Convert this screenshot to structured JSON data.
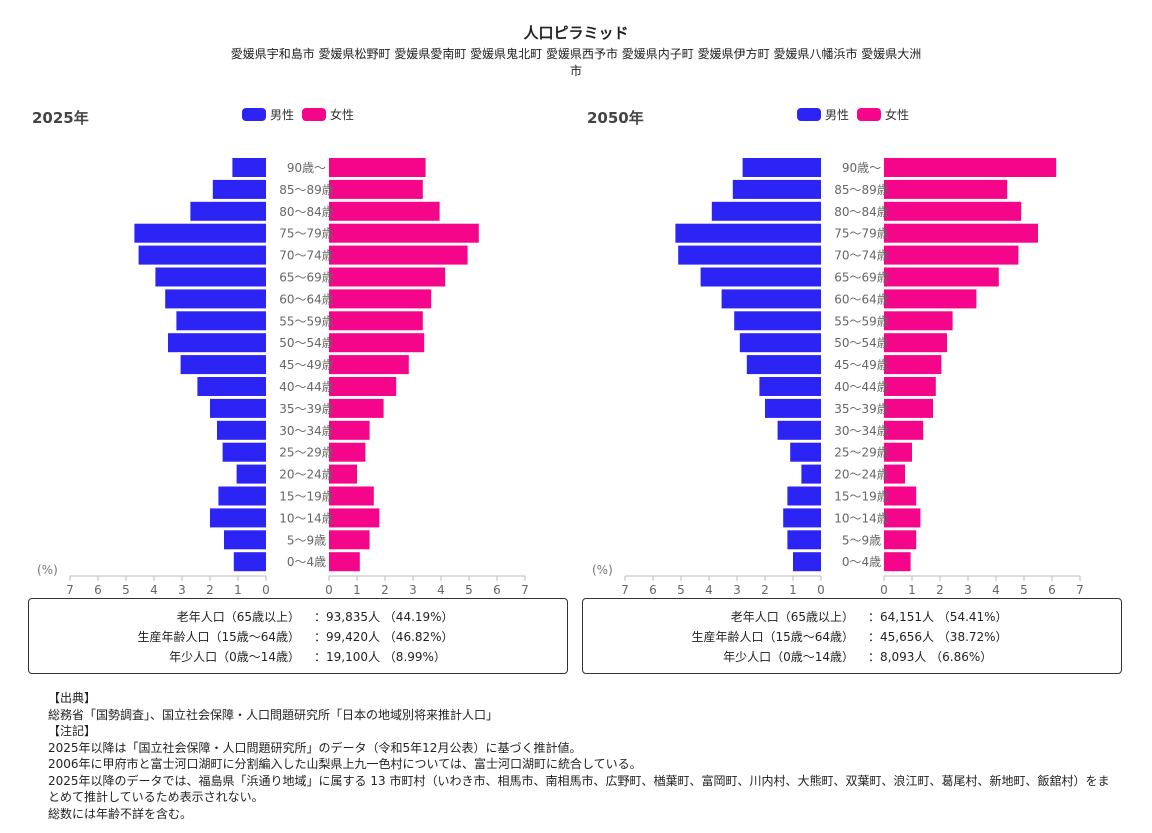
{
  "title": "人口ピラミッド",
  "subtitle": "愛媛県宇和島市 愛媛県松野町 愛媛県愛南町 愛媛県鬼北町 愛媛県西予市 愛媛県内子町 愛媛県伊方町 愛媛県八幡浜市 愛媛県大洲市",
  "legend": {
    "male": "男性",
    "female": "女性"
  },
  "colors": {
    "male": "#2b24f5",
    "female": "#f5058a"
  },
  "axis_unit": "(%)",
  "chart_data": [
    {
      "type": "bar",
      "title": "2025年",
      "categories": [
        "90歳〜",
        "85〜89歳",
        "80〜84歳",
        "75〜79歳",
        "70〜74歳",
        "65〜69歳",
        "60〜64歳",
        "55〜59歳",
        "50〜54歳",
        "45〜49歳",
        "40〜44歳",
        "35〜39歳",
        "30〜34歳",
        "25〜29歳",
        "20〜24歳",
        "15〜19歳",
        "10〜14歳",
        "5〜9歳",
        "0〜4歳"
      ],
      "series": [
        {
          "name": "男性",
          "values": [
            1.2,
            1.9,
            2.7,
            4.7,
            4.55,
            3.95,
            3.6,
            3.2,
            3.5,
            3.05,
            2.45,
            2.0,
            1.75,
            1.55,
            1.05,
            1.7,
            2.0,
            1.5,
            1.15
          ]
        },
        {
          "name": "女性",
          "values": [
            3.45,
            3.35,
            3.95,
            5.35,
            4.95,
            4.15,
            3.65,
            3.35,
            3.4,
            2.85,
            2.4,
            1.95,
            1.45,
            1.3,
            1.0,
            1.6,
            1.8,
            1.45,
            1.1
          ]
        }
      ],
      "xlim": [
        0,
        7
      ],
      "ticks": [
        "7",
        "6",
        "5",
        "4",
        "3",
        "2",
        "1",
        "0"
      ],
      "ticks_right": [
        "0",
        "1",
        "2",
        "3",
        "4",
        "5",
        "6",
        "7"
      ]
    },
    {
      "type": "bar",
      "title": "2050年",
      "categories": [
        "90歳〜",
        "85〜89歳",
        "80〜84歳",
        "75〜79歳",
        "70〜74歳",
        "65〜69歳",
        "60〜64歳",
        "55〜59歳",
        "50〜54歳",
        "45〜49歳",
        "40〜44歳",
        "35〜39歳",
        "30〜34歳",
        "25〜29歳",
        "20〜24歳",
        "15〜19歳",
        "10〜14歳",
        "5〜9歳",
        "0〜4歳"
      ],
      "series": [
        {
          "name": "男性",
          "values": [
            2.8,
            3.15,
            3.9,
            5.2,
            5.1,
            4.3,
            3.55,
            3.1,
            2.9,
            2.65,
            2.2,
            2.0,
            1.55,
            1.1,
            0.7,
            1.2,
            1.35,
            1.2,
            1.0
          ]
        },
        {
          "name": "女性",
          "values": [
            6.15,
            4.4,
            4.9,
            5.5,
            4.8,
            4.1,
            3.3,
            2.45,
            2.25,
            2.05,
            1.85,
            1.75,
            1.4,
            1.0,
            0.75,
            1.15,
            1.3,
            1.15,
            0.95
          ]
        }
      ],
      "xlim": [
        0,
        7
      ],
      "ticks": [
        "7",
        "6",
        "5",
        "4",
        "3",
        "2",
        "1",
        "0"
      ],
      "ticks_right": [
        "0",
        "1",
        "2",
        "3",
        "4",
        "5",
        "6",
        "7"
      ]
    }
  ],
  "summary_2025": [
    {
      "label": "老年人口（65歳以上）",
      "value": "：93,835人 （44.19%）"
    },
    {
      "label": "生産年齢人口（15歳〜64歳）",
      "value": "：99,420人 （46.82%）"
    },
    {
      "label": "年少人口（0歳〜14歳）",
      "value": "：19,100人 （8.99%）"
    }
  ],
  "summary_2050": [
    {
      "label": "老年人口（65歳以上）",
      "value": "：64,151人 （54.41%）"
    },
    {
      "label": "生産年齢人口（15歳〜64歳）",
      "value": "：45,656人 （38.72%）"
    },
    {
      "label": "年少人口（0歳〜14歳）",
      "value": "：8,093人 （6.86%）"
    }
  ],
  "notes": [
    "【出典】",
    "総務省「国勢調査」、国立社会保障・人口問題研究所「日本の地域別将来推計人口」",
    "【注記】",
    "2025年以降は「国立社会保障・人口問題研究所」のデータ（令和5年12月公表）に基づく推計値。",
    "2006年に甲府市と富士河口湖町に分割編入した山梨県上九一色村については、富士河口湖町に統合している。",
    "2025年以降のデータでは、福島県「浜通り地域」に属する 13 市町村（いわき市、相馬市、南相馬市、広野町、楢葉町、富岡町、川内村、大熊町、双葉町、浪江町、葛尾村、新地町、飯舘村）をまとめて推計しているため表示されない。",
    "総数には年齢不詳を含む。"
  ]
}
